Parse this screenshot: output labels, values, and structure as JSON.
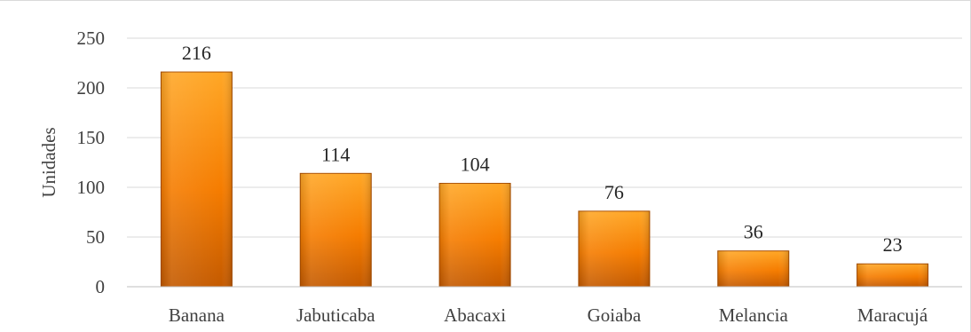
{
  "chart_data": {
    "type": "bar",
    "title": "",
    "xlabel": "",
    "ylabel": "Unidades",
    "categories": [
      "Banana",
      "Jabuticaba",
      "Abacaxi",
      "Goiaba",
      "Melancia",
      "Maracujá"
    ],
    "values": [
      216,
      114,
      104,
      76,
      36,
      23
    ],
    "data_labels": [
      "216",
      "114",
      "104",
      "76",
      "36",
      "23"
    ],
    "ylim": [
      0,
      250
    ],
    "yticks": [
      0,
      50,
      100,
      150,
      200,
      250
    ],
    "grid": true,
    "legend": "none",
    "colors": {
      "bar_top": "#ffa726",
      "bar_mid": "#f57c00",
      "bar_bottom": "#c45a00",
      "bar_edge": "#a84d00"
    }
  }
}
